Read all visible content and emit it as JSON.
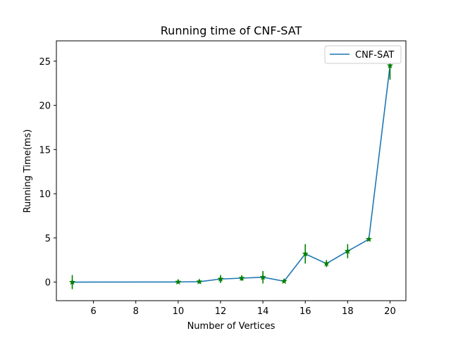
{
  "chart_data": {
    "type": "line",
    "title": "Running time of CNF-SAT",
    "xlabel": "Number of Vertices",
    "ylabel": "Running Time(ms)",
    "xlim": [
      4.25,
      20.75
    ],
    "ylim": [
      -2.1,
      27.3
    ],
    "xticks": [
      6,
      8,
      10,
      12,
      14,
      16,
      18,
      20
    ],
    "yticks": [
      0,
      5,
      10,
      15,
      20,
      25
    ],
    "legend": {
      "position": "top-right",
      "entries": [
        "CNF-SAT"
      ]
    },
    "grid": false,
    "colors": {
      "line": "#1f77b4",
      "markers": "#008000"
    },
    "series": [
      {
        "name": "CNF-SAT",
        "x": [
          5,
          10,
          11,
          12,
          13,
          14,
          15,
          16,
          17,
          18,
          19,
          20
        ],
        "y": [
          0.0,
          0.02,
          0.05,
          0.35,
          0.45,
          0.55,
          0.1,
          3.2,
          2.1,
          3.5,
          4.85,
          24.5
        ],
        "err": [
          0.8,
          0.15,
          0.2,
          0.45,
          0.3,
          0.7,
          0.15,
          1.1,
          0.4,
          0.8,
          0.2,
          1.6
        ]
      }
    ]
  }
}
